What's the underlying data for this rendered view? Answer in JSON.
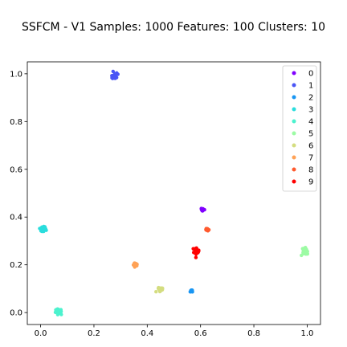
{
  "chart_data": {
    "type": "scatter",
    "title": "SSFCM - V1 Samples: 1000 Features: 100 Clusters: 10",
    "xlabel": "",
    "ylabel": "",
    "xlim": [
      -0.05,
      1.05
    ],
    "ylim": [
      -0.05,
      1.05
    ],
    "xticks": [
      0.0,
      0.2,
      0.4,
      0.6,
      0.8,
      1.0
    ],
    "xtick_labels": [
      "0.0",
      "0.2",
      "0.4",
      "0.6",
      "0.8",
      "1.0"
    ],
    "yticks": [
      0.0,
      0.2,
      0.4,
      0.6,
      0.8,
      1.0
    ],
    "ytick_labels": [
      "0.0",
      "0.2",
      "0.4",
      "0.6",
      "0.8",
      "1.0"
    ],
    "grid": false,
    "legend_position": "top-right",
    "series": [
      {
        "name": "0",
        "color": "#8000ff",
        "points": [
          [
            0.607,
            0.43
          ]
        ],
        "spread": 0.004
      },
      {
        "name": "1",
        "color": "#4a55f5",
        "points": [
          [
            0.275,
            0.99
          ]
        ],
        "spread": 0.012
      },
      {
        "name": "2",
        "color": "#1996f3",
        "points": [
          [
            0.565,
            0.09
          ]
        ],
        "spread": 0.004
      },
      {
        "name": "3",
        "color": "#2adddd",
        "points": [
          [
            0.01,
            0.35
          ]
        ],
        "spread": 0.012
      },
      {
        "name": "4",
        "color": "#4cf2ce",
        "points": [
          [
            0.068,
            0.005
          ]
        ],
        "spread": 0.011
      },
      {
        "name": "5",
        "color": "#9cfba4",
        "points": [
          [
            0.992,
            0.257
          ]
        ],
        "spread": 0.01
      },
      {
        "name": "6",
        "color": "#d4dd80",
        "points": [
          [
            0.45,
            0.097
          ]
        ],
        "spread": 0.008
      },
      {
        "name": "7",
        "color": "#ffa256",
        "points": [
          [
            0.355,
            0.2
          ]
        ],
        "spread": 0.007
      },
      {
        "name": "8",
        "color": "#ff5a2e",
        "points": [
          [
            0.625,
            0.347
          ]
        ],
        "spread": 0.004
      },
      {
        "name": "9",
        "color": "#ff0000",
        "points": [
          [
            0.584,
            0.257
          ]
        ],
        "spread": 0.013
      }
    ]
  }
}
